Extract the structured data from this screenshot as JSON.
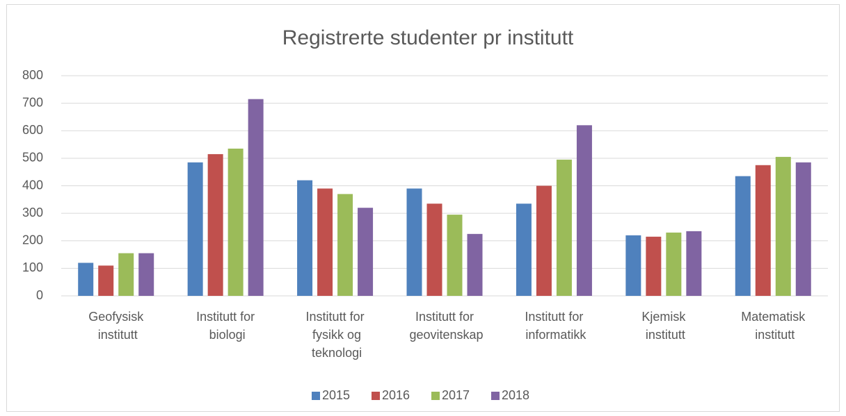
{
  "chart_data": {
    "type": "bar",
    "title": "Registrerte studenter pr institutt",
    "categories": [
      "Geofysisk institutt",
      "Institutt for biologi",
      "Institutt for fysikk og teknologi",
      "Institutt for geovitenskap",
      "Institutt for informatikk",
      "Kjemisk institutt",
      "Matematisk institutt"
    ],
    "series": [
      {
        "name": "2015",
        "color": "#4f81bd",
        "values": [
          120,
          485,
          420,
          390,
          335,
          220,
          435
        ]
      },
      {
        "name": "2016",
        "color": "#c0504d",
        "values": [
          110,
          515,
          390,
          335,
          400,
          215,
          475
        ]
      },
      {
        "name": "2017",
        "color": "#9bbb59",
        "values": [
          155,
          535,
          370,
          295,
          495,
          230,
          505
        ]
      },
      {
        "name": "2018",
        "color": "#8064a2",
        "values": [
          155,
          715,
          320,
          225,
          620,
          235,
          485
        ]
      }
    ],
    "ylim": [
      0,
      800
    ],
    "yticks": [
      0,
      100,
      200,
      300,
      400,
      500,
      600,
      700,
      800
    ],
    "grid": true,
    "legend": "bottom"
  }
}
